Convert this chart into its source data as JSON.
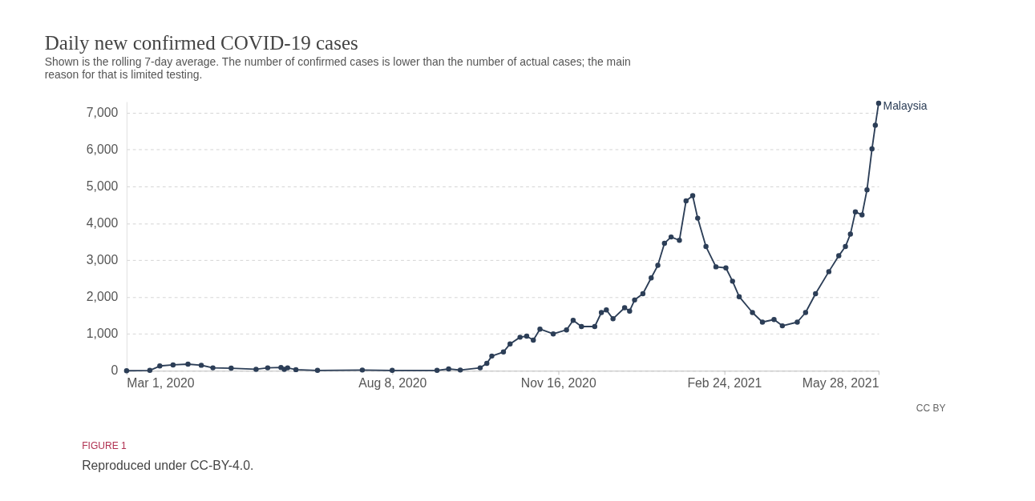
{
  "chart_data": {
    "type": "line",
    "title": "Daily new confirmed COVID-19 cases",
    "subtitle": "Shown is the rolling 7-day average. The number of confirmed cases is lower than the number of actual cases; the main reason for that is limited testing.",
    "x": [
      "2020-03-01",
      "2020-03-15",
      "2020-03-21",
      "2020-03-29",
      "2020-04-07",
      "2020-04-15",
      "2020-04-22",
      "2020-05-03",
      "2020-05-18",
      "2020-05-25",
      "2020-06-02",
      "2020-06-04",
      "2020-06-06",
      "2020-06-11",
      "2020-06-24",
      "2020-07-21",
      "2020-08-08",
      "2020-09-04",
      "2020-09-11",
      "2020-09-18",
      "2020-09-30",
      "2020-10-04",
      "2020-10-07",
      "2020-10-14",
      "2020-10-18",
      "2020-10-24",
      "2020-10-28",
      "2020-11-01",
      "2020-11-05",
      "2020-11-13",
      "2020-11-21",
      "2020-11-25",
      "2020-11-30",
      "2020-12-08",
      "2020-12-12",
      "2020-12-15",
      "2020-12-19",
      "2020-12-26",
      "2020-12-29",
      "2021-01-01",
      "2021-01-06",
      "2021-01-11",
      "2021-01-15",
      "2021-01-19",
      "2021-01-23",
      "2021-01-28",
      "2021-02-01",
      "2021-02-05",
      "2021-02-08",
      "2021-02-13",
      "2021-02-19",
      "2021-02-25",
      "2021-03-01",
      "2021-03-05",
      "2021-03-13",
      "2021-03-19",
      "2021-03-26",
      "2021-03-31",
      "2021-04-09",
      "2021-04-14",
      "2021-04-20",
      "2021-04-28",
      "2021-05-04",
      "2021-05-08",
      "2021-05-11",
      "2021-05-14",
      "2021-05-18",
      "2021-05-21",
      "2021-05-24",
      "2021-05-26",
      "2021-05-28"
    ],
    "series": [
      {
        "name": "Malaysia",
        "color": "#2c3e57",
        "values": [
          0,
          10,
          130,
          160,
          180,
          150,
          80,
          70,
          40,
          80,
          90,
          40,
          80,
          30,
          10,
          20,
          10,
          10,
          50,
          20,
          80,
          200,
          400,
          510,
          730,
          910,
          940,
          830,
          1130,
          1000,
          1110,
          1370,
          1200,
          1200,
          1580,
          1650,
          1410,
          1710,
          1620,
          1920,
          2090,
          2520,
          2860,
          3460,
          3630,
          3540,
          4610,
          4750,
          4140,
          3370,
          2820,
          2790,
          2430,
          2010,
          1580,
          1320,
          1390,
          1220,
          1320,
          1580,
          2090,
          2690,
          3120,
          3370,
          3710,
          4310,
          4230,
          4910,
          6020,
          6660,
          7260
        ]
      }
    ],
    "xlim": [
      "2020-03-01",
      "2021-05-28"
    ],
    "xticks": [
      {
        "value": "2020-03-01",
        "label": "Mar 1, 2020"
      },
      {
        "value": "2020-08-08",
        "label": "Aug 8, 2020"
      },
      {
        "value": "2020-11-16",
        "label": "Nov 16, 2020"
      },
      {
        "value": "2021-02-24",
        "label": "Feb 24, 2021"
      },
      {
        "value": "2021-05-28",
        "label": "May 28, 2021"
      }
    ],
    "ylim": [
      0,
      7300
    ],
    "yticks": [
      {
        "value": 0,
        "label": "0"
      },
      {
        "value": 1000,
        "label": "1,000"
      },
      {
        "value": 2000,
        "label": "2,000"
      },
      {
        "value": 3000,
        "label": "3,000"
      },
      {
        "value": 4000,
        "label": "4,000"
      },
      {
        "value": 5000,
        "label": "5,000"
      },
      {
        "value": 6000,
        "label": "6,000"
      },
      {
        "value": 7000,
        "label": "7,000"
      }
    ],
    "grid": "y",
    "legend": false,
    "marker": "circle",
    "line_style": "solid",
    "annotations": [
      "CC BY",
      "FIGURE 1",
      "Reproduced under CC-BY-4.0."
    ]
  }
}
